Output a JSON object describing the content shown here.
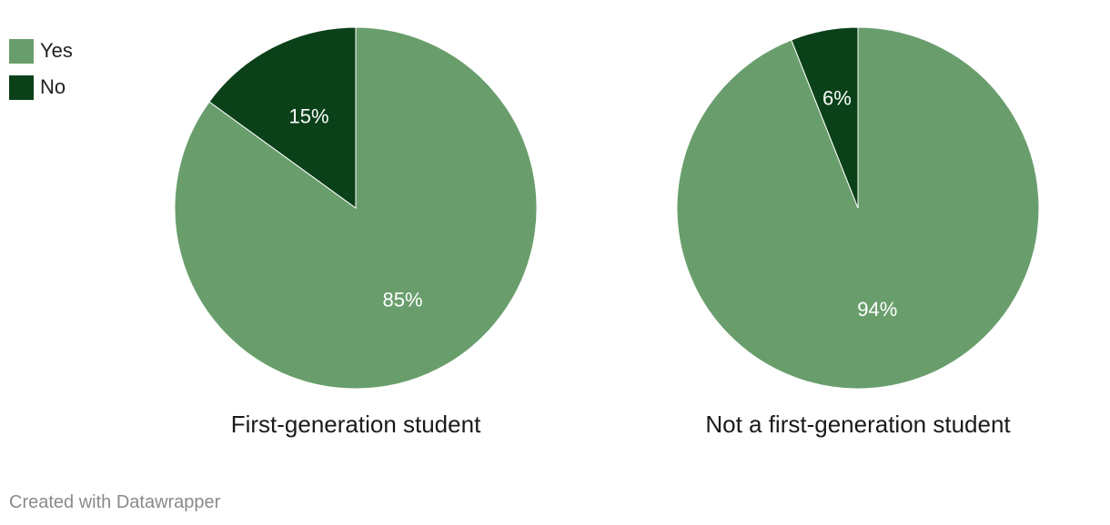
{
  "legend": [
    {
      "label": "Yes",
      "color": "#699e6c"
    },
    {
      "label": "No",
      "color": "#0b4119"
    }
  ],
  "chart_data": [
    {
      "type": "pie",
      "title": "First-generation student",
      "slices": [
        {
          "label": "Yes",
          "value": 85,
          "display": "85%",
          "color": "#699e6c"
        },
        {
          "label": "No",
          "value": 15,
          "display": "15%",
          "color": "#0b4119"
        }
      ]
    },
    {
      "type": "pie",
      "title": "Not a first-generation student",
      "slices": [
        {
          "label": "Yes",
          "value": 94,
          "display": "94%",
          "color": "#699e6c"
        },
        {
          "label": "No",
          "value": 6,
          "display": "6%",
          "color": "#0b4119"
        }
      ]
    }
  ],
  "footer": "Created with Datawrapper"
}
